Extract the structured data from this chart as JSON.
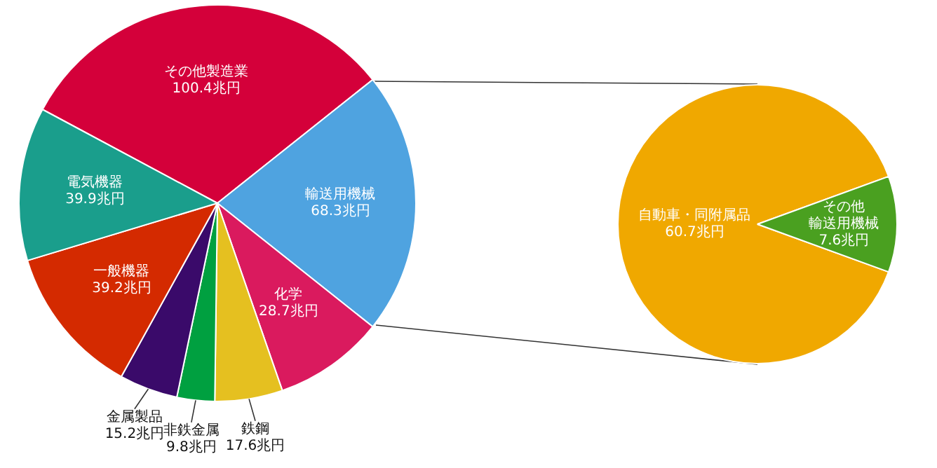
{
  "chart_data": [
    {
      "type": "pie",
      "categories": [
        "その他製造業",
        "輸送用機械",
        "化学",
        "鉄鋼",
        "非鉄金属",
        "金属製品",
        "一般機器",
        "電気機器"
      ],
      "values": [
        100.4,
        68.3,
        28.7,
        17.6,
        9.8,
        15.2,
        39.2,
        39.9
      ],
      "colors": [
        "#d4003a",
        "#4fa3e0",
        "#da1a5e",
        "#e5c020",
        "#00a040",
        "#3a0a6a",
        "#d42a00",
        "#1a9e8c"
      ],
      "value_labels": [
        "100.4兆円",
        "68.3兆円",
        "28.7兆円",
        "17.6兆円",
        "9.8兆円",
        "15.2兆円",
        "39.2兆円",
        "39.9兆円"
      ]
    },
    {
      "type": "pie",
      "categories": [
        "自動車・同附属品",
        "その他輸送用機械"
      ],
      "values": [
        60.7,
        7.6
      ],
      "colors": [
        "#f0a800",
        "#4aa020"
      ],
      "value_labels": [
        "60.7兆円",
        "7.6兆円"
      ]
    }
  ]
}
